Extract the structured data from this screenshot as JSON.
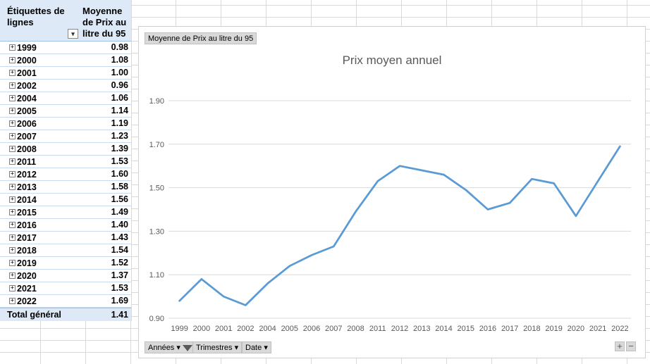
{
  "pivot": {
    "header_col1": "Étiquettes de lignes",
    "header_col2": "Moyenne de Prix au litre du 95",
    "rows": [
      {
        "label": "1999",
        "value": "0.98"
      },
      {
        "label": "2000",
        "value": "1.08"
      },
      {
        "label": "2001",
        "value": "1.00"
      },
      {
        "label": "2002",
        "value": "0.96"
      },
      {
        "label": "2004",
        "value": "1.06"
      },
      {
        "label": "2005",
        "value": "1.14"
      },
      {
        "label": "2006",
        "value": "1.19"
      },
      {
        "label": "2007",
        "value": "1.23"
      },
      {
        "label": "2008",
        "value": "1.39"
      },
      {
        "label": "2011",
        "value": "1.53"
      },
      {
        "label": "2012",
        "value": "1.60"
      },
      {
        "label": "2013",
        "value": "1.58"
      },
      {
        "label": "2014",
        "value": "1.56"
      },
      {
        "label": "2015",
        "value": "1.49"
      },
      {
        "label": "2016",
        "value": "1.40"
      },
      {
        "label": "2017",
        "value": "1.43"
      },
      {
        "label": "2018",
        "value": "1.54"
      },
      {
        "label": "2019",
        "value": "1.52"
      },
      {
        "label": "2020",
        "value": "1.37"
      },
      {
        "label": "2021",
        "value": "1.53"
      },
      {
        "label": "2022",
        "value": "1.69"
      }
    ],
    "total_label": "Total général",
    "total_value": "1.41"
  },
  "chart": {
    "value_field_button": "Moyenne de Prix au litre du 95",
    "axis_field_buttons": [
      "Années",
      "Trimestres",
      "Date"
    ],
    "line_color": "#5b9bd5"
  },
  "chart_data": {
    "type": "line",
    "title": "Prix moyen annuel",
    "xlabel": "",
    "ylabel": "",
    "categories": [
      "1999",
      "2000",
      "2001",
      "2002",
      "2004",
      "2005",
      "2006",
      "2007",
      "2008",
      "2011",
      "2012",
      "2013",
      "2014",
      "2015",
      "2016",
      "2017",
      "2018",
      "2019",
      "2020",
      "2021",
      "2022"
    ],
    "series": [
      {
        "values": [
          0.98,
          1.08,
          1.0,
          0.96,
          1.06,
          1.14,
          1.19,
          1.23,
          1.39,
          1.53,
          1.6,
          1.58,
          1.56,
          1.49,
          1.4,
          1.43,
          1.54,
          1.52,
          1.37,
          1.53,
          1.69
        ]
      }
    ],
    "ylim": [
      0.9,
      1.9
    ],
    "yticks": [
      "0.90",
      "1.10",
      "1.30",
      "1.50",
      "1.70",
      "1.90"
    ],
    "grid": true,
    "legend": "none"
  }
}
